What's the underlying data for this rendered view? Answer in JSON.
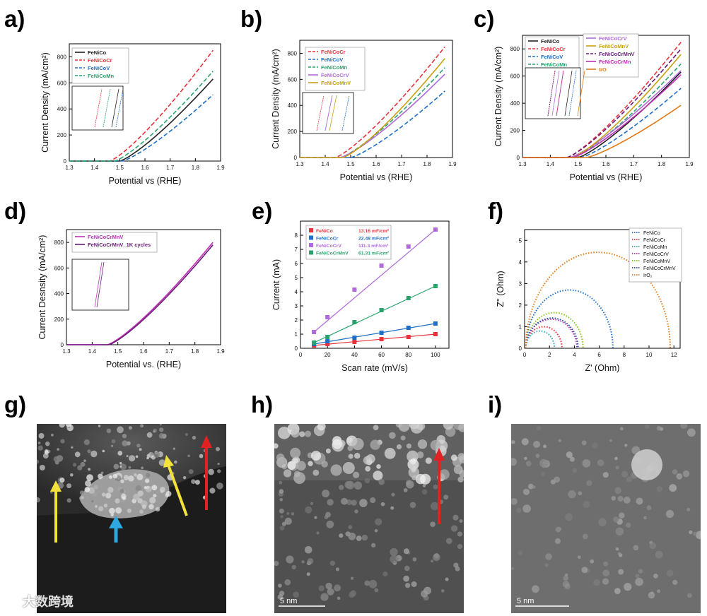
{
  "panels": {
    "a": "a)",
    "b": "b)",
    "c": "c)",
    "d": "d)",
    "e": "e)",
    "f": "f)",
    "g": "g)",
    "h": "h)",
    "i": "i)"
  },
  "colors": {
    "black": "#222222",
    "red": "#e8323c",
    "blue": "#1f6fc6",
    "green": "#2aa36b",
    "purple": "#b06ad9",
    "gold": "#c9a012",
    "darkpurple": "#6a1b7a",
    "magenta": "#c02fb4",
    "orange": "#e07b17",
    "lime": "#86c420",
    "teal": "#2aa7b0",
    "navy": "#2a4aa0",
    "arrow_yellow": "#f2e23a",
    "arrow_red": "#e02222",
    "arrow_blue": "#2ea8e0"
  },
  "chart_data": [
    {
      "id": "a",
      "type": "line",
      "xlabel": "Potential vs (RHE)",
      "ylabel": "Current Density (mA/cm²)",
      "xlim": [
        1.3,
        1.9
      ],
      "ylim": [
        0,
        900
      ],
      "xticks": [
        "1.3",
        "1.4",
        "1.5",
        "1.6",
        "1.7",
        "1.8",
        "1.9"
      ],
      "yticks": [
        "0",
        "200",
        "400",
        "600",
        "800"
      ],
      "series": [
        {
          "name": "FeNiCo",
          "color": "black",
          "dash": "solid",
          "onset": 1.5,
          "end": 630
        },
        {
          "name": "FeNiCoCr",
          "color": "red",
          "dash": "dashed",
          "onset": 1.46,
          "end": 850
        },
        {
          "name": "FeNiCoV",
          "color": "blue",
          "dash": "dashed",
          "onset": 1.51,
          "end": 510
        },
        {
          "name": "FeNiCoMn",
          "color": "green",
          "dash": "dashed",
          "onset": 1.48,
          "end": 690
        }
      ]
    },
    {
      "id": "b",
      "type": "line",
      "xlabel": "Potential vs (RHE)",
      "ylabel": "Current Density (mA/cm²)",
      "xlim": [
        1.3,
        1.9
      ],
      "ylim": [
        0,
        900
      ],
      "xticks": [
        "1.3",
        "1.4",
        "1.5",
        "1.6",
        "1.7",
        "1.8",
        "1.9"
      ],
      "yticks": [
        "0",
        "200",
        "400",
        "600",
        "800"
      ],
      "series": [
        {
          "name": "FeNiCoCr",
          "color": "red",
          "dash": "dashed",
          "onset": 1.44,
          "end": 850
        },
        {
          "name": "FeNiCoV",
          "color": "blue",
          "dash": "dashed",
          "onset": 1.5,
          "end": 510
        },
        {
          "name": "FeNiCoMn",
          "color": "green",
          "dash": "dashed",
          "onset": 1.46,
          "end": 690
        },
        {
          "name": "FeNiCoCrV",
          "color": "purple",
          "dash": "solid",
          "onset": 1.46,
          "end": 640
        },
        {
          "name": "FeNiCoMnV",
          "color": "gold",
          "dash": "solid",
          "onset": 1.47,
          "end": 760
        }
      ]
    },
    {
      "id": "c",
      "type": "line",
      "xlabel": "Potential vs (RHE)",
      "ylabel": "Current Density (mA/cm²)",
      "xlim": [
        1.3,
        1.9
      ],
      "ylim": [
        0,
        900
      ],
      "xticks": [
        "1.3",
        "1.4",
        "1.5",
        "1.6",
        "1.7",
        "1.8",
        "1.9"
      ],
      "yticks": [
        "0",
        "200",
        "400",
        "600",
        "800"
      ],
      "series": [
        {
          "name": "FeNiCo",
          "color": "black",
          "dash": "solid",
          "onset": 1.5,
          "end": 630
        },
        {
          "name": "FeNiCoCr",
          "color": "red",
          "dash": "dashed",
          "onset": 1.46,
          "end": 850
        },
        {
          "name": "FeNiCoV",
          "color": "blue",
          "dash": "dashed",
          "onset": 1.51,
          "end": 510
        },
        {
          "name": "FeNiCoMn",
          "color": "green",
          "dash": "dashed",
          "onset": 1.48,
          "end": 690
        },
        {
          "name": "FeNiCoCrV",
          "color": "purple",
          "dash": "solid",
          "onset": 1.47,
          "end": 640
        },
        {
          "name": "FeNiCoMnV",
          "color": "gold",
          "dash": "solid",
          "onset": 1.48,
          "end": 760
        },
        {
          "name": "FeNiCoCrMnV",
          "color": "darkpurple",
          "dash": "dashed",
          "onset": 1.46,
          "end": 800
        },
        {
          "name": "FeNiCoCrMn",
          "color": "magenta",
          "dash": "solid",
          "onset": 1.48,
          "end": 610
        },
        {
          "name": "IrO",
          "color": "orange",
          "dash": "solid",
          "onset": 1.53,
          "end": 385
        }
      ]
    },
    {
      "id": "d",
      "type": "line",
      "xlabel": "Potential vs. (RHE)",
      "ylabel": "Current Desnsity (mA/cm²)",
      "xlim": [
        1.3,
        1.9
      ],
      "ylim": [
        0,
        900
      ],
      "xticks": [
        "1.3",
        "1.4",
        "1.5",
        "1.6",
        "1.7",
        "1.8",
        "1.9"
      ],
      "yticks": [
        "0",
        "200",
        "400",
        "600",
        "800"
      ],
      "series": [
        {
          "name": "FeNiCoCrMnV",
          "color": "magenta",
          "dash": "solid",
          "onset": 1.46,
          "end": 800
        },
        {
          "name": "FeNiCoCrMnV_1K cycles",
          "color": "darkpurple",
          "dash": "solid",
          "onset": 1.465,
          "end": 780
        }
      ]
    },
    {
      "id": "e",
      "type": "scatter",
      "xlabel": "Scan rate (mV/s)",
      "ylabel": "Current (mA)",
      "xlim": [
        0,
        110
      ],
      "ylim": [
        0,
        9
      ],
      "xticks": [
        "0",
        "20",
        "40",
        "60",
        "80",
        "100"
      ],
      "yticks": [
        "0",
        "1",
        "2",
        "3",
        "4",
        "5",
        "6",
        "7",
        "8"
      ],
      "x": [
        10,
        20,
        40,
        60,
        80,
        100
      ],
      "series": [
        {
          "name": "FeNiCo",
          "value_label": "13.16 mF/cm²",
          "color": "red",
          "values": [
            0.2,
            0.3,
            0.45,
            0.65,
            0.8,
            1.0
          ]
        },
        {
          "name": "FeNiCoCr",
          "value_label": "22.48 mF/cm²",
          "color": "blue",
          "values": [
            0.3,
            0.5,
            0.75,
            1.1,
            1.45,
            1.75
          ]
        },
        {
          "name": "FeNiCoCrV",
          "value_label": "111.3 mF/cm²",
          "color": "purple",
          "values": [
            1.15,
            2.2,
            4.15,
            5.85,
            7.2,
            8.4
          ]
        },
        {
          "name": "FeNiCoCrMnV",
          "value_label": "61.31 mF/cm²",
          "color": "green",
          "values": [
            0.4,
            0.8,
            1.85,
            2.7,
            3.55,
            4.4
          ]
        }
      ]
    },
    {
      "id": "f",
      "type": "line",
      "xlabel": "Z' (Ohm)",
      "ylabel": "Z'' (Ohm)",
      "xlim": [
        0,
        12.5
      ],
      "ylim": [
        0,
        5.5
      ],
      "xticks": [
        "0",
        "2",
        "4",
        "6",
        "8",
        "10",
        "12"
      ],
      "yticks": [
        "0",
        "1",
        "2",
        "3",
        "4",
        "5"
      ],
      "series": [
        {
          "name": "FeNiCo",
          "color": "blue",
          "r0": 0.1,
          "r1": 7.1,
          "peak": 2.7
        },
        {
          "name": "FeNiCoCr",
          "color": "red",
          "r0": 0.1,
          "r1": 3.0,
          "peak": 1.0
        },
        {
          "name": "FeNiCoMn",
          "color": "teal",
          "r0": 0.1,
          "r1": 2.4,
          "peak": 0.8
        },
        {
          "name": "FeNiCoCrV",
          "color": "magenta",
          "r0": 0.1,
          "r1": 4.2,
          "peak": 1.35
        },
        {
          "name": "FeNiCoMnV",
          "color": "lime",
          "r0": 0.1,
          "r1": 4.7,
          "peak": 1.65
        },
        {
          "name": "FeNiCoCrMnV",
          "color": "navy",
          "r0": 0.1,
          "r1": 4.3,
          "peak": 1.4
        },
        {
          "name": "IrO₂",
          "color": "orange",
          "r0": 0.1,
          "r1": 11.7,
          "peak": 4.45
        }
      ]
    }
  ],
  "micrographs": {
    "h_scale": "5 nm",
    "i_scale": "5 nm",
    "watermark": "大数跨境"
  }
}
